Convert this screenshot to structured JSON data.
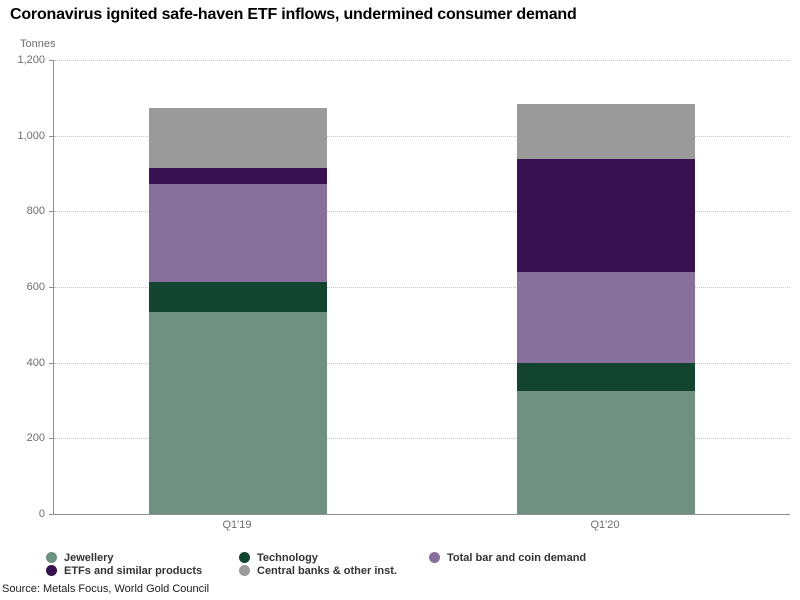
{
  "chart_data": {
    "type": "bar",
    "stacked": true,
    "title": "Coronavirus ignited safe-haven ETF inflows, undermined consumer demand",
    "unit_label": "Tonnes",
    "xlabel": "",
    "ylabel": "Tonnes",
    "categories": [
      "Q1'19",
      "Q1'20"
    ],
    "series": [
      {
        "name": "Jewellery",
        "color": "#6F9181",
        "values": [
          533,
          326
        ]
      },
      {
        "name": "Technology",
        "color": "#124430",
        "values": [
          81,
          73
        ]
      },
      {
        "name": "Total bar and coin demand",
        "color": "#87719C",
        "values": [
          258,
          242
        ]
      },
      {
        "name": "ETFs and similar products",
        "color": "#371150",
        "values": [
          43,
          298
        ]
      },
      {
        "name": "Central banks & other inst.",
        "color": "#9A9A9A",
        "values": [
          157,
          145
        ]
      }
    ],
    "totals": [
      1072,
      1084
    ],
    "ylim": [
      0,
      1200
    ],
    "yticks": [
      0,
      200,
      400,
      600,
      800,
      1000,
      1200
    ],
    "ytick_labels": [
      "0",
      "200",
      "400",
      "600",
      "800",
      "1,000",
      "1,200"
    ],
    "grid": "horizontal-dotted",
    "legend_position": "bottom"
  },
  "source": "Source: Metals Focus, World Gold Council"
}
